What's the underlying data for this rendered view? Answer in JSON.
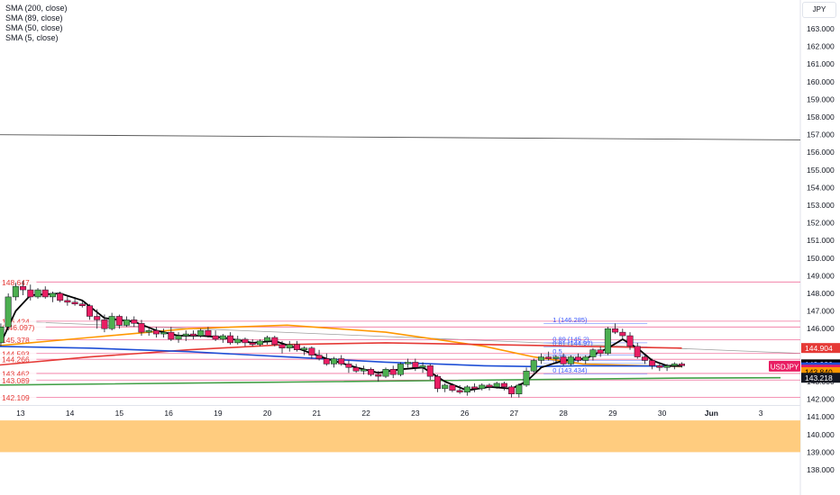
{
  "legend": [
    "SMA (200, close)",
    "SMA (89, close)",
    "SMA (50, close)",
    "SMA (5, close)"
  ],
  "currency": "JPY",
  "symbol": "USDJPY",
  "colors": {
    "up": "#4caf50",
    "down": "#e91e63",
    "sma200": "#43a047",
    "sma89": "#e53935",
    "sma50": "#1e4fd6",
    "sma5": "#000000",
    "orange_ma": "#ff9800",
    "zone": "#ffc978"
  },
  "chart_data": {
    "type": "candlestick",
    "y_ticks": [
      "163.000",
      "162.000",
      "161.000",
      "160.000",
      "159.000",
      "158.000",
      "157.000",
      "156.000",
      "155.000",
      "154.000",
      "153.000",
      "152.000",
      "151.000",
      "150.000",
      "149.000",
      "148.000",
      "147.000",
      "146.000",
      "145.000",
      "144.000",
      "143.000",
      "142.000",
      "141.000",
      "140.000",
      "139.000",
      "138.000"
    ],
    "x_ticks": [
      {
        "label": "13",
        "x": 0.6
      },
      {
        "label": "14",
        "x": 1.6
      },
      {
        "label": "15",
        "x": 2.6
      },
      {
        "label": "16",
        "x": 3.6
      },
      {
        "label": "19",
        "x": 4.6
      },
      {
        "label": "20",
        "x": 5.6
      },
      {
        "label": "21",
        "x": 6.6
      },
      {
        "label": "22",
        "x": 7.6
      },
      {
        "label": "23",
        "x": 8.6
      },
      {
        "label": "26",
        "x": 9.6
      },
      {
        "label": "27",
        "x": 10.6
      },
      {
        "label": "28",
        "x": 11.6
      },
      {
        "label": "29",
        "x": 12.6
      },
      {
        "label": "30",
        "x": 13.6
      },
      {
        "label": "Jun",
        "x": 14.6
      },
      {
        "label": "3",
        "x": 15.6
      }
    ],
    "candles": [
      {
        "x": 0.2,
        "o": 145.2,
        "h": 146.3,
        "l": 145.0,
        "c": 146.1
      },
      {
        "x": 0.35,
        "o": 146.1,
        "h": 148.0,
        "l": 145.9,
        "c": 147.8
      },
      {
        "x": 0.5,
        "o": 147.8,
        "h": 148.6,
        "l": 147.6,
        "c": 148.4
      },
      {
        "x": 0.65,
        "o": 148.4,
        "h": 148.7,
        "l": 147.9,
        "c": 148.2
      },
      {
        "x": 0.8,
        "o": 148.2,
        "h": 148.5,
        "l": 147.6,
        "c": 147.8
      },
      {
        "x": 0.95,
        "o": 147.8,
        "h": 148.3,
        "l": 147.7,
        "c": 148.2
      },
      {
        "x": 1.1,
        "o": 148.2,
        "h": 148.4,
        "l": 147.7,
        "c": 147.8
      },
      {
        "x": 1.25,
        "o": 147.8,
        "h": 148.1,
        "l": 147.5,
        "c": 148.0
      },
      {
        "x": 1.4,
        "o": 148.0,
        "h": 148.1,
        "l": 147.5,
        "c": 147.6
      },
      {
        "x": 1.55,
        "o": 147.6,
        "h": 147.9,
        "l": 147.3,
        "c": 147.5
      },
      {
        "x": 1.7,
        "o": 147.5,
        "h": 147.8,
        "l": 147.3,
        "c": 147.4
      },
      {
        "x": 1.85,
        "o": 147.4,
        "h": 147.6,
        "l": 147.2,
        "c": 147.3
      },
      {
        "x": 2.0,
        "o": 147.3,
        "h": 147.4,
        "l": 146.5,
        "c": 146.7
      },
      {
        "x": 2.15,
        "o": 146.7,
        "h": 147.1,
        "l": 146.0,
        "c": 146.5
      },
      {
        "x": 2.3,
        "o": 146.5,
        "h": 146.8,
        "l": 145.8,
        "c": 146.0
      },
      {
        "x": 2.45,
        "o": 146.0,
        "h": 146.9,
        "l": 145.9,
        "c": 146.7
      },
      {
        "x": 2.6,
        "o": 146.7,
        "h": 146.8,
        "l": 146.0,
        "c": 146.2
      },
      {
        "x": 2.75,
        "o": 146.2,
        "h": 146.7,
        "l": 146.1,
        "c": 146.5
      },
      {
        "x": 2.9,
        "o": 146.5,
        "h": 146.7,
        "l": 146.1,
        "c": 146.3
      },
      {
        "x": 3.05,
        "o": 146.3,
        "h": 146.5,
        "l": 145.6,
        "c": 145.8
      },
      {
        "x": 3.2,
        "o": 145.8,
        "h": 146.0,
        "l": 145.6,
        "c": 145.9
      },
      {
        "x": 3.35,
        "o": 145.9,
        "h": 146.1,
        "l": 145.5,
        "c": 145.7
      },
      {
        "x": 3.5,
        "o": 145.7,
        "h": 146.0,
        "l": 145.5,
        "c": 145.8
      },
      {
        "x": 3.65,
        "o": 145.8,
        "h": 146.1,
        "l": 145.3,
        "c": 145.4
      },
      {
        "x": 3.8,
        "o": 145.4,
        "h": 145.8,
        "l": 145.2,
        "c": 145.6
      },
      {
        "x": 3.95,
        "o": 145.6,
        "h": 145.9,
        "l": 145.3,
        "c": 145.7
      },
      {
        "x": 4.1,
        "o": 145.7,
        "h": 145.9,
        "l": 145.4,
        "c": 145.6
      },
      {
        "x": 4.25,
        "o": 145.6,
        "h": 146.0,
        "l": 145.5,
        "c": 145.9
      },
      {
        "x": 4.4,
        "o": 145.9,
        "h": 146.1,
        "l": 145.5,
        "c": 145.6
      },
      {
        "x": 4.55,
        "o": 145.6,
        "h": 145.9,
        "l": 145.3,
        "c": 145.4
      },
      {
        "x": 4.7,
        "o": 145.4,
        "h": 145.7,
        "l": 145.2,
        "c": 145.6
      },
      {
        "x": 4.85,
        "o": 145.6,
        "h": 145.8,
        "l": 145.1,
        "c": 145.2
      },
      {
        "x": 5.0,
        "o": 145.2,
        "h": 145.6,
        "l": 145.1,
        "c": 145.4
      },
      {
        "x": 5.15,
        "o": 145.4,
        "h": 145.5,
        "l": 145.0,
        "c": 145.2
      },
      {
        "x": 5.3,
        "o": 145.2,
        "h": 145.4,
        "l": 145.0,
        "c": 145.1
      },
      {
        "x": 5.45,
        "o": 145.1,
        "h": 145.4,
        "l": 145.0,
        "c": 145.3
      },
      {
        "x": 5.6,
        "o": 145.3,
        "h": 145.6,
        "l": 145.1,
        "c": 145.5
      },
      {
        "x": 5.75,
        "o": 145.5,
        "h": 145.6,
        "l": 145.0,
        "c": 145.1
      },
      {
        "x": 5.9,
        "o": 145.1,
        "h": 145.3,
        "l": 144.6,
        "c": 144.9
      },
      {
        "x": 6.05,
        "o": 144.9,
        "h": 145.3,
        "l": 144.7,
        "c": 145.1
      },
      {
        "x": 6.2,
        "o": 145.1,
        "h": 145.3,
        "l": 144.7,
        "c": 144.8
      },
      {
        "x": 6.35,
        "o": 144.8,
        "h": 145.0,
        "l": 144.5,
        "c": 144.9
      },
      {
        "x": 6.5,
        "o": 144.9,
        "h": 145.0,
        "l": 144.3,
        "c": 144.5
      },
      {
        "x": 6.65,
        "o": 144.5,
        "h": 144.8,
        "l": 144.2,
        "c": 144.3
      },
      {
        "x": 6.8,
        "o": 144.3,
        "h": 144.6,
        "l": 143.9,
        "c": 144.0
      },
      {
        "x": 6.95,
        "o": 144.0,
        "h": 144.4,
        "l": 143.8,
        "c": 144.3
      },
      {
        "x": 7.1,
        "o": 144.3,
        "h": 144.5,
        "l": 143.9,
        "c": 144.0
      },
      {
        "x": 7.25,
        "o": 144.0,
        "h": 144.2,
        "l": 143.5,
        "c": 143.8
      },
      {
        "x": 7.4,
        "o": 143.8,
        "h": 144.0,
        "l": 143.5,
        "c": 143.6
      },
      {
        "x": 7.55,
        "o": 143.6,
        "h": 143.9,
        "l": 143.4,
        "c": 143.7
      },
      {
        "x": 7.7,
        "o": 143.7,
        "h": 143.8,
        "l": 143.3,
        "c": 143.4
      },
      {
        "x": 7.85,
        "o": 143.4,
        "h": 143.6,
        "l": 143.0,
        "c": 143.3
      },
      {
        "x": 8.0,
        "o": 143.3,
        "h": 143.8,
        "l": 143.2,
        "c": 143.7
      },
      {
        "x": 8.15,
        "o": 143.7,
        "h": 143.9,
        "l": 143.2,
        "c": 143.4
      },
      {
        "x": 8.3,
        "o": 143.4,
        "h": 144.1,
        "l": 143.3,
        "c": 144.0
      },
      {
        "x": 8.45,
        "o": 144.0,
        "h": 144.3,
        "l": 143.8,
        "c": 144.1
      },
      {
        "x": 8.6,
        "o": 144.1,
        "h": 144.3,
        "l": 143.6,
        "c": 143.8
      },
      {
        "x": 8.75,
        "o": 143.8,
        "h": 144.1,
        "l": 143.5,
        "c": 143.9
      },
      {
        "x": 8.9,
        "o": 143.9,
        "h": 144.0,
        "l": 143.1,
        "c": 143.3
      },
      {
        "x": 9.05,
        "o": 143.3,
        "h": 143.4,
        "l": 142.4,
        "c": 142.6
      },
      {
        "x": 9.2,
        "o": 142.6,
        "h": 142.9,
        "l": 142.4,
        "c": 142.8
      },
      {
        "x": 9.35,
        "o": 142.8,
        "h": 142.9,
        "l": 142.4,
        "c": 142.5
      },
      {
        "x": 9.5,
        "o": 142.5,
        "h": 142.8,
        "l": 142.3,
        "c": 142.4
      },
      {
        "x": 9.65,
        "o": 142.4,
        "h": 142.8,
        "l": 142.2,
        "c": 142.7
      },
      {
        "x": 9.8,
        "o": 142.7,
        "h": 142.9,
        "l": 142.4,
        "c": 142.6
      },
      {
        "x": 9.95,
        "o": 142.6,
        "h": 142.9,
        "l": 142.5,
        "c": 142.8
      },
      {
        "x": 10.1,
        "o": 142.8,
        "h": 142.9,
        "l": 142.5,
        "c": 142.7
      },
      {
        "x": 10.25,
        "o": 142.7,
        "h": 143.0,
        "l": 142.6,
        "c": 142.9
      },
      {
        "x": 10.4,
        "o": 142.9,
        "h": 143.0,
        "l": 142.5,
        "c": 142.7
      },
      {
        "x": 10.55,
        "o": 142.7,
        "h": 142.8,
        "l": 142.1,
        "c": 142.3
      },
      {
        "x": 10.7,
        "o": 142.3,
        "h": 142.9,
        "l": 142.1,
        "c": 142.8
      },
      {
        "x": 10.85,
        "o": 142.8,
        "h": 143.8,
        "l": 142.7,
        "c": 143.6
      },
      {
        "x": 11.0,
        "o": 143.6,
        "h": 144.3,
        "l": 143.5,
        "c": 144.2
      },
      {
        "x": 11.15,
        "o": 144.2,
        "h": 144.6,
        "l": 144.0,
        "c": 144.4
      },
      {
        "x": 11.3,
        "o": 144.4,
        "h": 144.7,
        "l": 144.2,
        "c": 144.3
      },
      {
        "x": 11.45,
        "o": 144.3,
        "h": 144.5,
        "l": 144.0,
        "c": 144.4
      },
      {
        "x": 11.6,
        "o": 144.4,
        "h": 144.6,
        "l": 143.9,
        "c": 144.0
      },
      {
        "x": 11.75,
        "o": 144.0,
        "h": 144.5,
        "l": 143.9,
        "c": 144.4
      },
      {
        "x": 11.9,
        "o": 144.4,
        "h": 144.6,
        "l": 144.1,
        "c": 144.2
      },
      {
        "x": 12.05,
        "o": 144.2,
        "h": 144.5,
        "l": 144.0,
        "c": 144.4
      },
      {
        "x": 12.2,
        "o": 144.4,
        "h": 144.9,
        "l": 144.2,
        "c": 144.8
      },
      {
        "x": 12.35,
        "o": 144.8,
        "h": 145.0,
        "l": 144.4,
        "c": 144.6
      },
      {
        "x": 12.5,
        "o": 144.6,
        "h": 146.1,
        "l": 144.5,
        "c": 146.0
      },
      {
        "x": 12.65,
        "o": 146.0,
        "h": 146.3,
        "l": 145.7,
        "c": 145.8
      },
      {
        "x": 12.8,
        "o": 145.8,
        "h": 146.0,
        "l": 145.4,
        "c": 145.6
      },
      {
        "x": 12.95,
        "o": 145.6,
        "h": 145.8,
        "l": 144.8,
        "c": 145.0
      },
      {
        "x": 13.1,
        "o": 145.0,
        "h": 145.2,
        "l": 144.3,
        "c": 144.4
      },
      {
        "x": 13.25,
        "o": 144.4,
        "h": 144.6,
        "l": 144.0,
        "c": 144.2
      },
      {
        "x": 13.4,
        "o": 144.2,
        "h": 144.3,
        "l": 143.7,
        "c": 143.9
      },
      {
        "x": 13.55,
        "o": 143.9,
        "h": 144.1,
        "l": 143.6,
        "c": 143.8
      },
      {
        "x": 13.7,
        "o": 143.8,
        "h": 144.0,
        "l": 143.6,
        "c": 143.9
      },
      {
        "x": 13.85,
        "o": 143.9,
        "h": 144.1,
        "l": 143.7,
        "c": 144.0
      },
      {
        "x": 14.0,
        "o": 144.0,
        "h": 144.1,
        "l": 143.8,
        "c": 143.9
      }
    ],
    "sma5": [
      [
        0.2,
        145.2
      ],
      [
        0.5,
        147.0
      ],
      [
        0.8,
        147.9
      ],
      [
        1.4,
        148.0
      ],
      [
        1.85,
        147.6
      ],
      [
        2.3,
        146.6
      ],
      [
        2.9,
        146.4
      ],
      [
        3.35,
        145.9
      ],
      [
        3.8,
        145.6
      ],
      [
        4.25,
        145.6
      ],
      [
        4.7,
        145.5
      ],
      [
        5.3,
        145.2
      ],
      [
        5.75,
        145.3
      ],
      [
        6.2,
        144.9
      ],
      [
        6.8,
        144.3
      ],
      [
        7.4,
        143.8
      ],
      [
        7.85,
        143.5
      ],
      [
        8.3,
        143.7
      ],
      [
        8.75,
        143.8
      ],
      [
        9.2,
        143.0
      ],
      [
        9.65,
        142.5
      ],
      [
        10.1,
        142.7
      ],
      [
        10.55,
        142.6
      ],
      [
        10.85,
        143.0
      ],
      [
        11.15,
        143.8
      ],
      [
        11.6,
        144.2
      ],
      [
        12.05,
        144.3
      ],
      [
        12.5,
        144.9
      ],
      [
        12.8,
        145.4
      ],
      [
        13.1,
        144.9
      ],
      [
        13.4,
        144.2
      ],
      [
        13.7,
        143.9
      ],
      [
        14.0,
        143.9
      ]
    ],
    "sma50": [
      [
        0.0,
        145.0
      ],
      [
        2.0,
        144.9
      ],
      [
        4.0,
        144.7
      ],
      [
        6.0,
        144.4
      ],
      [
        8.0,
        144.1
      ],
      [
        10.0,
        143.9
      ],
      [
        11.0,
        143.85
      ],
      [
        12.0,
        143.9
      ],
      [
        14.0,
        143.88
      ]
    ],
    "sma89": [
      [
        0.0,
        143.9
      ],
      [
        2.0,
        144.4
      ],
      [
        4.0,
        144.8
      ],
      [
        6.0,
        145.1
      ],
      [
        8.0,
        145.2
      ],
      [
        10.0,
        145.1
      ],
      [
        12.0,
        145.0
      ],
      [
        14.0,
        144.9
      ]
    ],
    "orange_ma": [
      [
        0.0,
        145.0
      ],
      [
        2.0,
        145.5
      ],
      [
        4.0,
        146.0
      ],
      [
        6.0,
        146.2
      ],
      [
        8.0,
        145.8
      ],
      [
        10.0,
        145.0
      ],
      [
        11.0,
        144.4
      ],
      [
        12.0,
        144.0
      ],
      [
        14.0,
        143.84
      ]
    ],
    "sma200": [
      [
        0.0,
        142.8
      ],
      [
        7.0,
        143.0
      ],
      [
        14.0,
        143.2
      ],
      [
        16.0,
        143.218
      ]
    ],
    "trend_lines": [
      {
        "from": [
          0.0,
          157.0
        ],
        "to": [
          16.0,
          156.7
        ]
      },
      {
        "from": [
          0.6,
          146.4
        ],
        "to": [
          16.0,
          144.6
        ]
      }
    ],
    "horizontal_levels": [
      {
        "price": 148.647,
        "label": "148.647"
      },
      {
        "price": 146.424,
        "label": "146.424"
      },
      {
        "price": 146.097,
        "label": "(146.097)"
      },
      {
        "price": 145.378,
        "label": "145.378"
      },
      {
        "price": 144.593,
        "label": "144.593"
      },
      {
        "price": 144.266,
        "label": "144.266"
      },
      {
        "price": 143.462,
        "label": "143.462"
      },
      {
        "price": 143.089,
        "label": "143.089"
      },
      {
        "price": 142.109,
        "label": "142.109"
      }
    ],
    "fib_levels": [
      {
        "price": 146.285,
        "label": "1 (146.285)"
      },
      {
        "price": 145.2,
        "label": "0.89 (145.2)"
      },
      {
        "price": 144.97,
        "label": "0.81 (144.97)"
      },
      {
        "price": 144.5,
        "label": "0.5"
      },
      {
        "price": 144.2,
        "label": "0.39"
      },
      {
        "price": 144.03,
        "label": "(144.03)"
      },
      {
        "price": 143.434,
        "label": "0 (143.434)"
      }
    ],
    "demand_zone": {
      "from": 139.0,
      "to": 140.8
    },
    "price_tags": [
      {
        "price": 144.904,
        "label": "144.904",
        "bg": "#e53935",
        "fg": "#ffffff"
      },
      {
        "price": 143.926,
        "label": "143.926",
        "bg": "#000000",
        "fg": "#ffffff"
      },
      {
        "price": 143.886,
        "label": "143.886",
        "bg": "#1e4fd6",
        "fg": "#ffffff"
      },
      {
        "price": 143.876,
        "label": "143.876",
        "bg": "#e91e63",
        "fg": "#ffffff"
      },
      {
        "price": 143.84,
        "label": "143.840",
        "bg": "#ff9800",
        "fg": "#000000"
      },
      {
        "price": 143.218,
        "label": "143.218",
        "bg": "#131722",
        "fg": "#ffffff"
      }
    ]
  }
}
